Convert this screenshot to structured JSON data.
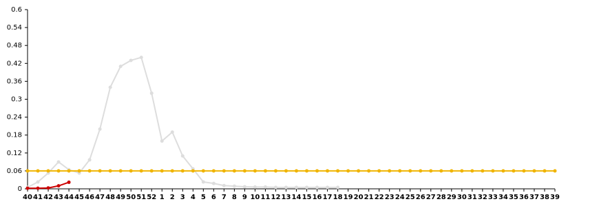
{
  "chart_data": {
    "type": "line",
    "categories": [
      "40",
      "41",
      "42",
      "43",
      "44",
      "45",
      "46",
      "47",
      "48",
      "49",
      "50",
      "51",
      "52",
      "1",
      "2",
      "3",
      "4",
      "5",
      "6",
      "7",
      "8",
      "9",
      "10",
      "11",
      "12",
      "13",
      "14",
      "15",
      "16",
      "17",
      "18",
      "19",
      "20",
      "21",
      "22",
      "23",
      "24",
      "25",
      "26",
      "27",
      "28",
      "29",
      "30",
      "31",
      "32",
      "33",
      "34",
      "35",
      "36",
      "37",
      "38",
      "39"
    ],
    "series": [
      {
        "color": "#dddddd",
        "values": [
          0.005,
          0.023,
          0.053,
          0.09,
          0.064,
          0.053,
          0.097,
          0.2,
          0.34,
          0.41,
          0.43,
          0.44,
          0.32,
          0.16,
          0.19,
          0.11,
          0.067,
          0.023,
          0.018,
          0.011,
          0.009,
          0.007,
          0.006,
          0.006,
          0.005,
          0.005,
          0.005,
          0.005,
          0.005,
          0.005,
          0.005,
          null,
          null,
          null,
          null,
          null,
          null,
          null,
          null,
          null,
          null,
          null,
          null,
          null,
          null,
          null,
          null,
          null,
          null,
          null,
          null,
          null
        ]
      },
      {
        "color": "#f0b400",
        "values": [
          0.06,
          0.06,
          0.06,
          0.06,
          0.06,
          0.06,
          0.06,
          0.06,
          0.06,
          0.06,
          0.06,
          0.06,
          0.06,
          0.06,
          0.06,
          0.06,
          0.06,
          0.06,
          0.06,
          0.06,
          0.06,
          0.06,
          0.06,
          0.06,
          0.06,
          0.06,
          0.06,
          0.06,
          0.06,
          0.06,
          0.06,
          0.06,
          0.06,
          0.06,
          0.06,
          0.06,
          0.06,
          0.06,
          0.06,
          0.06,
          0.06,
          0.06,
          0.06,
          0.06,
          0.06,
          0.06,
          0.06,
          0.06,
          0.06,
          0.06,
          0.06,
          0.06
        ]
      },
      {
        "color": "#cc0000",
        "values": [
          0.002,
          0.002,
          0.003,
          0.01,
          0.022,
          null,
          null,
          null,
          null,
          null,
          null,
          null,
          null,
          null,
          null,
          null,
          null,
          null,
          null,
          null,
          null,
          null,
          null,
          null,
          null,
          null,
          null,
          null,
          null,
          null,
          null,
          null,
          null,
          null,
          null,
          null,
          null,
          null,
          null,
          null,
          null,
          null,
          null,
          null,
          null,
          null,
          null,
          null,
          null,
          null,
          null,
          null
        ]
      }
    ],
    "ylim": [
      0,
      0.6
    ],
    "yticks": [
      0,
      0.06,
      0.12,
      0.18,
      0.24,
      0.3,
      0.36,
      0.42,
      0.48,
      0.54,
      0.6
    ]
  }
}
